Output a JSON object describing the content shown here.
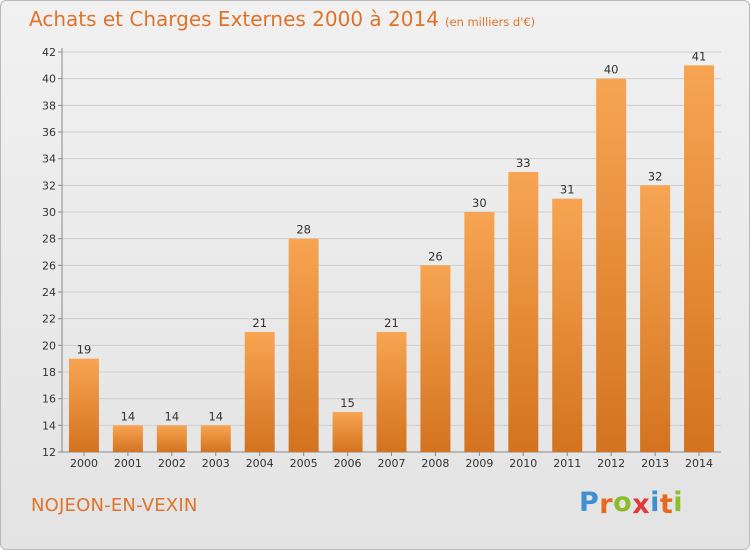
{
  "header": {
    "title": "Achats et Charges Externes 2000 à 2014",
    "subtitle": "(en milliers d'€)"
  },
  "footer": {
    "commune": "NOJEON-EN-VEXIN",
    "logo": "Proxiti"
  },
  "colors": {
    "bar_light": "#f7a553",
    "bar_dark": "#d4731f",
    "text_accent": "#e0732a",
    "logo_letters": [
      "#3f8fd2",
      "#e66a1e",
      "#8bbd2a",
      "#e03a3a",
      "#3f8fd2",
      "#e66a1e",
      "#8bbd2a"
    ]
  },
  "chart_data": {
    "type": "bar",
    "title": "Achats et Charges Externes 2000 à 2014",
    "subtitle": "(en milliers d'€)",
    "categories": [
      "2000",
      "2001",
      "2002",
      "2003",
      "2004",
      "2005",
      "2006",
      "2007",
      "2008",
      "2009",
      "2010",
      "2011",
      "2012",
      "2013",
      "2014"
    ],
    "values": [
      19,
      14,
      14,
      14,
      21,
      28,
      15,
      21,
      26,
      30,
      33,
      31,
      40,
      32,
      41
    ],
    "ylim": [
      12,
      42
    ],
    "yticks": [
      12,
      14,
      16,
      18,
      20,
      22,
      24,
      26,
      28,
      30,
      32,
      34,
      36,
      38,
      40,
      42
    ],
    "grid": true,
    "data_labels": true
  }
}
